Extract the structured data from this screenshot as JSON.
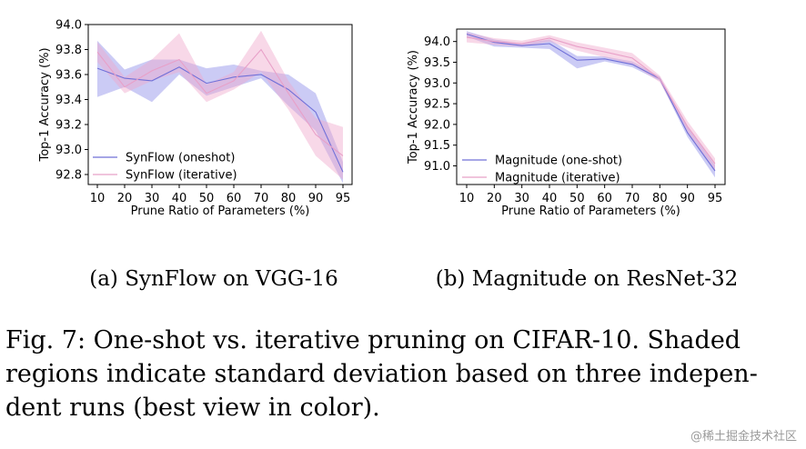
{
  "chart_data": [
    {
      "type": "line",
      "subcaption": "(a) SynFlow on VGG-16",
      "xlabel": "Prune Ratio of Parameters (%)",
      "ylabel": "Top-1 Accuracy (%)",
      "categories": [
        "10",
        "20",
        "30",
        "40",
        "50",
        "60",
        "70",
        "80",
        "90",
        "95"
      ],
      "ylim": [
        92.72,
        94.0
      ],
      "yticks": [
        "92.8",
        "93.0",
        "93.2",
        "93.4",
        "93.6",
        "93.8",
        "94.0"
      ],
      "ytick_values": [
        92.8,
        93.0,
        93.2,
        93.4,
        93.6,
        93.8,
        94.0
      ],
      "legend_position": "lower-left",
      "series": [
        {
          "name": "SynFlow (oneshot)",
          "color": "#7070d8",
          "fill": "#8c8ce8",
          "values": [
            93.65,
            93.57,
            93.55,
            93.66,
            93.53,
            93.58,
            93.6,
            93.48,
            93.3,
            92.82
          ],
          "lower": [
            93.42,
            93.5,
            93.38,
            93.6,
            93.43,
            93.5,
            93.57,
            93.35,
            93.15,
            92.73
          ],
          "upper": [
            93.87,
            93.64,
            93.72,
            93.72,
            93.65,
            93.68,
            93.63,
            93.6,
            93.45,
            92.9
          ]
        },
        {
          "name": "SynFlow (iterative)",
          "color": "#e8a0c8",
          "fill": "#f0a8cc",
          "values": [
            93.78,
            93.5,
            93.63,
            93.72,
            93.45,
            93.55,
            93.8,
            93.45,
            93.12,
            92.95
          ],
          "lower": [
            93.7,
            93.45,
            93.55,
            93.62,
            93.38,
            93.48,
            93.62,
            93.32,
            92.95,
            92.76
          ],
          "upper": [
            93.86,
            93.58,
            93.72,
            93.93,
            93.52,
            93.62,
            93.95,
            93.55,
            93.25,
            93.18
          ]
        }
      ]
    },
    {
      "type": "line",
      "subcaption": "(b) Magnitude on ResNet-32",
      "xlabel": "Prune Ratio of Parameters (%)",
      "ylabel": "Top-1 Accuracy (%)",
      "categories": [
        "10",
        "20",
        "30",
        "40",
        "50",
        "60",
        "70",
        "80",
        "90",
        "95"
      ],
      "ylim": [
        90.55,
        94.3
      ],
      "yticks": [
        "91.0",
        "91.5",
        "92.0",
        "92.5",
        "93.0",
        "93.5",
        "94.0"
      ],
      "ytick_values": [
        91.0,
        91.5,
        92.0,
        92.5,
        93.0,
        93.5,
        94.0
      ],
      "legend_position": "lower-left",
      "series": [
        {
          "name": "Magnitude (one-shot)",
          "color": "#7070d8",
          "fill": "#8c8ce8",
          "values": [
            94.18,
            93.98,
            93.9,
            93.95,
            93.55,
            93.58,
            93.45,
            93.1,
            91.8,
            90.88
          ],
          "lower": [
            94.12,
            93.88,
            93.85,
            93.82,
            93.35,
            93.52,
            93.38,
            93.05,
            91.7,
            90.72
          ],
          "upper": [
            94.25,
            94.05,
            93.95,
            94.05,
            93.65,
            93.64,
            93.52,
            93.15,
            91.95,
            91.02
          ]
        },
        {
          "name": "Magnitude (iterative)",
          "color": "#e8a0c8",
          "fill": "#f0a8cc",
          "values": [
            94.1,
            94.0,
            93.95,
            94.08,
            93.88,
            93.75,
            93.6,
            93.1,
            91.95,
            91.05
          ],
          "lower": [
            93.98,
            93.92,
            93.88,
            94.0,
            93.78,
            93.62,
            93.45,
            93.02,
            91.8,
            90.9
          ],
          "upper": [
            94.22,
            94.08,
            94.02,
            94.15,
            93.98,
            93.85,
            93.72,
            93.18,
            92.08,
            91.18
          ]
        }
      ]
    }
  ],
  "caption_lines": [
    "Fig. 7: One-shot vs. iterative pruning on CIFAR-10. Shaded",
    "regions indicate standard deviation based on three indepen-",
    "dent runs (best view in color)."
  ],
  "watermark": "@稀土掘金技术社区"
}
